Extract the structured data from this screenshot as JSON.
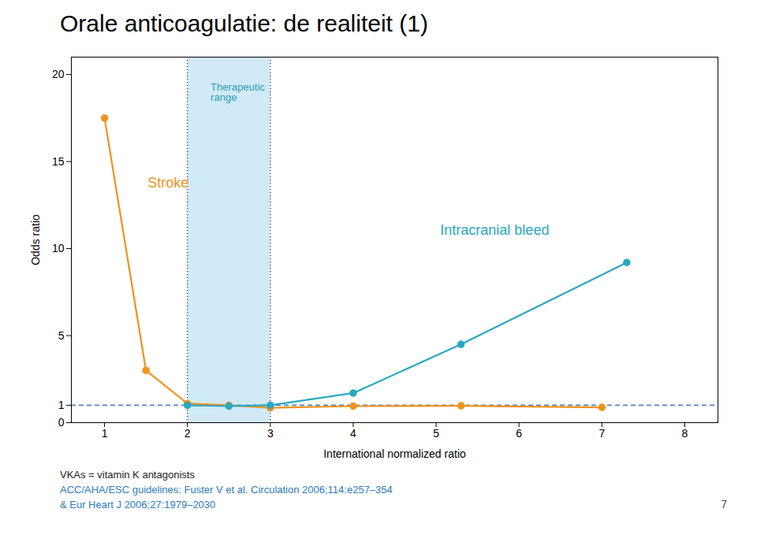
{
  "chart_data": {
    "type": "line",
    "title": "Orale anticoagulatie: de realiteit (1)",
    "xlabel": "International normalized ratio",
    "ylabel": "Odds ratio",
    "xlim": [
      0.6,
      8.4
    ],
    "ylim": [
      0,
      21
    ],
    "xticks": [
      1,
      2,
      3,
      4,
      5,
      6,
      7,
      8
    ],
    "yticks": [
      0,
      1,
      5,
      10,
      15,
      20
    ],
    "grid": false,
    "series": [
      {
        "name": "Stroke",
        "color": "#f0921e",
        "marker": "circle",
        "line_style": "solid",
        "x": [
          1.0,
          1.5,
          2.0,
          2.5,
          3.0,
          4.0,
          5.3,
          7.0
        ],
        "values": [
          17.5,
          3.0,
          1.1,
          1.0,
          0.85,
          0.95,
          0.97,
          0.88
        ],
        "label_x": 1.52,
        "label_y": 13.5
      },
      {
        "name": "Intracranial bleed",
        "color": "#29a8c0",
        "marker": "circle",
        "line_style": "solid",
        "x": [
          2.0,
          2.5,
          3.0,
          4.0,
          5.3,
          7.3
        ],
        "values": [
          1.0,
          0.95,
          1.0,
          1.7,
          4.5,
          9.2
        ],
        "label_x": 5.05,
        "label_y": 10.8
      }
    ],
    "shaded_range": {
      "x1": 2.0,
      "x2": 3.0,
      "color": "#d0eaf8"
    },
    "reference_line": {
      "y": 1.0,
      "color": "#5080c8"
    },
    "annotations": [
      {
        "text": "Therapeutic\nrange",
        "x": 2.28,
        "y": 19.5,
        "color": "#2e9db3"
      }
    ],
    "footnotes": [
      "VKAs = vitamin K antagonists",
      "ACC/AHA/ESC guidelines: Fuster V et al. Circulation 2006;114:e257–354",
      "& Eur Heart J 2006;27:1979–2030"
    ],
    "page_number": "7"
  }
}
